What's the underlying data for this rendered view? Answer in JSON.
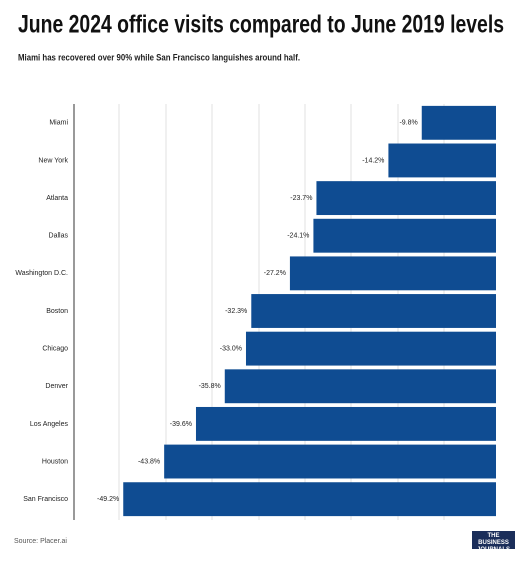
{
  "chart_data": {
    "type": "bar",
    "orientation": "horizontal",
    "title": "June 2024 office visits compared to June 2019 levels",
    "subtitle": "Miami has recovered over 90% while San Francisco languishes around half.",
    "categories": [
      "Miami",
      "New York",
      "Atlanta",
      "Dallas",
      "Washington D.C.",
      "Boston",
      "Chicago",
      "Denver",
      "Los Angeles",
      "Houston",
      "San Francisco"
    ],
    "values": [
      -9.8,
      -14.2,
      -23.7,
      -24.1,
      -27.2,
      -32.3,
      -33.0,
      -35.8,
      -39.6,
      -43.8,
      -49.2
    ],
    "value_labels": [
      "-9.8%",
      "-14.2%",
      "-23.7%",
      "-24.1%",
      "-27.2%",
      "-32.3%",
      "-33.0%",
      "-35.8%",
      "-39.6%",
      "-43.8%",
      "-49.2%"
    ],
    "color": "#0f4c92",
    "xlim": [
      -55.7,
      0
    ],
    "source": "Source: Placer.ai",
    "logo": "THE BUSINESS JOURNALS"
  }
}
